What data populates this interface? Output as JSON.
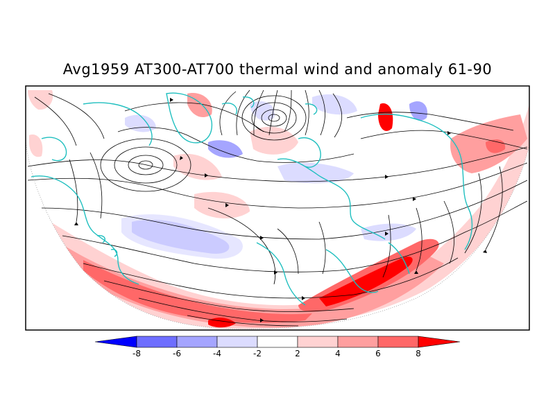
{
  "title": "Avg1959 AT300-AT700 thermal wind and anomaly 61-90",
  "colorbar": {
    "labels": [
      "-8",
      "-6",
      "-4",
      "-2",
      "2",
      "4",
      "6",
      "8"
    ],
    "colors": [
      "#0000ff",
      "#6e6eff",
      "#a5a5ff",
      "#dcdcff",
      "#ffffff",
      "#ffd2d2",
      "#ff9f9f",
      "#ff6868",
      "#ff0000"
    ]
  },
  "colors": {
    "coastline": "#1fbfbf",
    "streamline": "#000000"
  }
}
